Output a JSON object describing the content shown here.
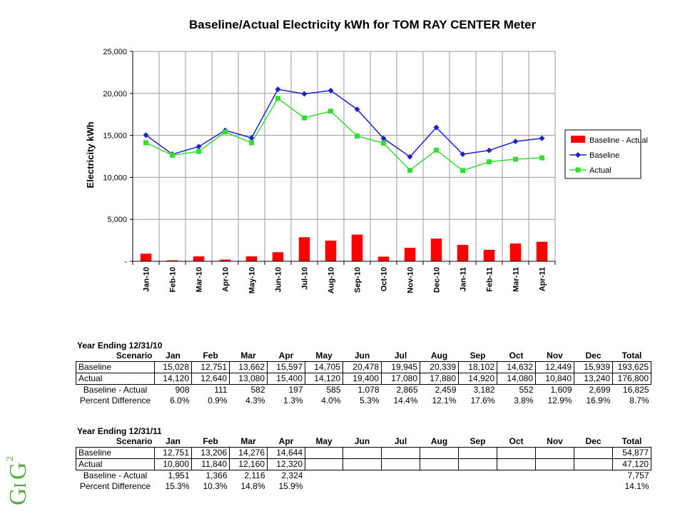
{
  "chart_data": {
    "type": "line",
    "title": "Baseline/Actual Electricity kWh for TOM RAY CENTER Meter",
    "ylabel": "Electricity kWh",
    "xlabel": "",
    "ylim": [
      0,
      25000
    ],
    "yticks": [
      0,
      5000,
      10000,
      15000,
      20000,
      25000
    ],
    "ytick_labels": [
      "-",
      "5,000",
      "10,000",
      "15,000",
      "20,000",
      "25,000"
    ],
    "grid": true,
    "legend_position": "right",
    "categories": [
      "Jan-10",
      "Feb-10",
      "Mar-10",
      "Apr-10",
      "May-10",
      "Jun-10",
      "Jul-10",
      "Aug-10",
      "Sep-10",
      "Oct-10",
      "Nov-10",
      "Dec-10",
      "Jan-11",
      "Feb-11",
      "Mar-11",
      "Apr-11"
    ],
    "series": [
      {
        "name": "Baseline - Actual",
        "kind": "bar",
        "color": "#ff0000",
        "values": [
          908,
          111,
          582,
          197,
          585,
          1078,
          2865,
          2459,
          3182,
          552,
          1609,
          2699,
          1951,
          1366,
          2116,
          2324
        ]
      },
      {
        "name": "Baseline",
        "kind": "line",
        "color": "#1f1fd0",
        "marker": "diamond",
        "values": [
          15028,
          12751,
          13662,
          15597,
          14705,
          20478,
          19945,
          20339,
          18102,
          14632,
          12449,
          15939,
          12751,
          13206,
          14276,
          14644
        ]
      },
      {
        "name": "Actual",
        "kind": "line",
        "color": "#33dd33",
        "marker": "square",
        "values": [
          14120,
          12640,
          13080,
          15400,
          14120,
          19400,
          17080,
          17880,
          14920,
          14080,
          10840,
          13240,
          10800,
          11840,
          12160,
          12320
        ]
      }
    ]
  },
  "tables": [
    {
      "title": "Year Ending 12/31/10",
      "columns": [
        "Scenario",
        "Jan",
        "Feb",
        "Mar",
        "Apr",
        "May",
        "Jun",
        "Jul",
        "Aug",
        "Sep",
        "Oct",
        "Nov",
        "Dec",
        "Total"
      ],
      "rows": [
        {
          "label": "Baseline",
          "values": [
            "15,028",
            "12,751",
            "13,662",
            "15,597",
            "14,705",
            "20,478",
            "19,945",
            "20,339",
            "18,102",
            "14,632",
            "12,449",
            "15,939",
            "193,625"
          ]
        },
        {
          "label": "Actual",
          "values": [
            "14,120",
            "12,640",
            "13,080",
            "15,400",
            "14,120",
            "19,400",
            "17,080",
            "17,880",
            "14,920",
            "14,080",
            "10,840",
            "13,240",
            "176,800"
          ]
        },
        {
          "label": "Baseline - Actual",
          "values": [
            "908",
            "111",
            "582",
            "197",
            "585",
            "1,078",
            "2,865",
            "2,459",
            "3,182",
            "552",
            "1,609",
            "2,699",
            "16,825"
          ]
        },
        {
          "label": "Percent Difference",
          "values": [
            "6.0%",
            "0.9%",
            "4.3%",
            "1.3%",
            "4.0%",
            "5.3%",
            "14.4%",
            "12.1%",
            "17.6%",
            "3.8%",
            "12.9%",
            "16.9%",
            "8.7%"
          ]
        }
      ]
    },
    {
      "title": "Year Ending 12/31/11",
      "columns": [
        "Scenario",
        "Jan",
        "Feb",
        "Mar",
        "Apr",
        "May",
        "Jun",
        "Jul",
        "Aug",
        "Sep",
        "Oct",
        "Nov",
        "Dec",
        "Total"
      ],
      "rows": [
        {
          "label": "Baseline",
          "values": [
            "12,751",
            "13,206",
            "14,276",
            "14,644",
            "",
            "",
            "",
            "",
            "",
            "",
            "",
            "",
            "54,877"
          ]
        },
        {
          "label": "Actual",
          "values": [
            "10,800",
            "11,840",
            "12,160",
            "12,320",
            "",
            "",
            "",
            "",
            "",
            "",
            "",
            "",
            "47,120"
          ]
        },
        {
          "label": "Baseline - Actual",
          "values": [
            "1,951",
            "1,366",
            "2,116",
            "2,324",
            "",
            "",
            "",
            "",
            "",
            "",
            "",
            "",
            "7,757"
          ]
        },
        {
          "label": "Percent Difference",
          "values": [
            "15.3%",
            "10.3%",
            "14.8%",
            "15.9%",
            "",
            "",
            "",
            "",
            "",
            "",
            "",
            "",
            "14.1%"
          ]
        }
      ]
    }
  ],
  "logo": {
    "text": "GIG",
    "superscript": "2",
    "color": "#5aa845"
  }
}
